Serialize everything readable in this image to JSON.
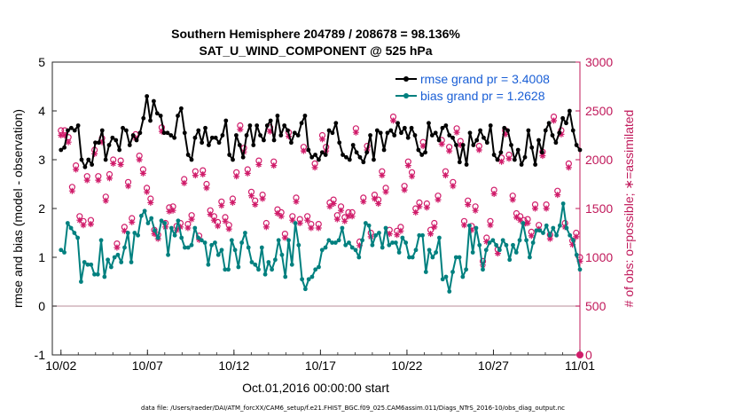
{
  "chart_data": {
    "type": "line",
    "title_line1": "Southern Hemisphere 204789 / 208678 = 98.136%",
    "title_line2": "SAT_U_WIND_COMPONENT @ 525 hPa",
    "ylabel_left": "rmse and bias (model - observation)",
    "ylabel_right": "# of obs: o=possible; ∗=assimilated",
    "xlabel": "Oct.01,2016 00:00:00 start",
    "footer": "data file: /Users/raeder/DAI/ATM_forcXX/CAM6_setup/f.e21.FHIST_BGC.f09_025.CAM6assim.011/Diags_NTrS_2016-10/obs_diag_output.nc",
    "ylim_left": [
      -1,
      5
    ],
    "ylim_right": [
      0,
      3000
    ],
    "xlim": [
      0.5,
      31.0
    ],
    "left_ticks": [
      "-1",
      "0",
      "1",
      "2",
      "3",
      "4",
      "5"
    ],
    "right_ticks": [
      "0",
      "500",
      "1000",
      "1500",
      "2000",
      "2500",
      "3000"
    ],
    "x_tick_labels": [
      "10/02",
      "10/07",
      "10/12",
      "10/17",
      "10/22",
      "10/27",
      "11/01"
    ],
    "x_tick_days": [
      1,
      6,
      11,
      16,
      21,
      26,
      31
    ],
    "zero_line": 0,
    "series": [
      {
        "name": "rmse",
        "legend": "rmse grand pr = 3.4008",
        "color": "#000000",
        "values": [
          3.2,
          3.25,
          3.6,
          3.65,
          3.6,
          3.7,
          3.0,
          2.85,
          3.0,
          2.9,
          3.35,
          3.35,
          3.6,
          3.0,
          3.3,
          3.45,
          3.4,
          3.2,
          3.65,
          3.6,
          3.3,
          3.5,
          3.4,
          3.55,
          3.85,
          4.3,
          3.8,
          4.2,
          3.95,
          3.9,
          3.55,
          3.55,
          3.5,
          3.45,
          3.9,
          4.05,
          3.55,
          3.1,
          3.0,
          3.45,
          3.6,
          3.35,
          3.65,
          3.3,
          3.45,
          3.45,
          3.35,
          3.5,
          3.8,
          3.1,
          3.0,
          3.5,
          3.3,
          3.05,
          3.5,
          3.7,
          3.3,
          3.7,
          3.5,
          3.4,
          3.7,
          3.8,
          3.4,
          3.9,
          3.5,
          3.7,
          3.6,
          3.35,
          3.55,
          3.5,
          3.75,
          3.9,
          3.2,
          3.05,
          3.1,
          3.0,
          3.15,
          3.1,
          3.6,
          3.55,
          3.75,
          3.35,
          3.1,
          3.05,
          3.0,
          3.3,
          3.15,
          3.05,
          2.95,
          3.15,
          3.5,
          3.0,
          3.6,
          3.55,
          3.2,
          3.55,
          3.6,
          3.5,
          3.75,
          3.55,
          3.65,
          3.45,
          3.65,
          3.5,
          3.2,
          3.1,
          3.15,
          3.75,
          3.5,
          3.55,
          3.4,
          3.65,
          3.7,
          3.5,
          3.45,
          3.3,
          2.95,
          3.3,
          2.9,
          3.55,
          3.3,
          3.4,
          3.6,
          3.45,
          3.35,
          3.7,
          3.1,
          3.0,
          3.15,
          3.65,
          3.6,
          3.3,
          3.0,
          3.2,
          2.9,
          3.05,
          3.6,
          3.25,
          2.9,
          3.4,
          3.15,
          3.6,
          3.75,
          3.5,
          3.35,
          3.55,
          3.85,
          3.75,
          4.0,
          3.6,
          3.3,
          3.2
        ]
      },
      {
        "name": "bias",
        "legend": "bias grand pr = 1.2628",
        "color": "#00807f",
        "values": [
          1.15,
          1.1,
          1.7,
          1.6,
          1.5,
          1.4,
          0.5,
          0.9,
          0.85,
          0.85,
          0.65,
          0.65,
          1.35,
          0.6,
          0.95,
          0.8,
          1.0,
          1.05,
          0.9,
          1.2,
          1.5,
          0.9,
          1.5,
          1.45,
          1.85,
          1.95,
          1.7,
          1.8,
          1.55,
          1.4,
          1.75,
          1.7,
          1.05,
          1.6,
          1.45,
          1.75,
          1.4,
          1.2,
          1.2,
          1.25,
          1.6,
          1.4,
          1.35,
          1.3,
          0.85,
          1.25,
          1.3,
          1.05,
          1.15,
          0.75,
          0.75,
          1.35,
          1.15,
          0.8,
          1.3,
          1.5,
          1.2,
          0.9,
          0.85,
          0.75,
          1.2,
          0.65,
          0.9,
          0.75,
          0.95,
          1.35,
          1.05,
          0.6,
          1.35,
          0.85,
          1.7,
          1.25,
          0.55,
          0.35,
          0.55,
          0.6,
          0.75,
          0.8,
          1.15,
          1.2,
          1.35,
          1.3,
          1.3,
          1.35,
          1.6,
          1.25,
          1.3,
          1.2,
          1.15,
          1.0,
          1.35,
          1.7,
          1.65,
          1.25,
          1.45,
          1.5,
          1.2,
          1.6,
          1.25,
          1.3,
          1.3,
          1.1,
          1.4,
          1.3,
          1.0,
          1.0,
          1.15,
          1.45,
          1.45,
          0.7,
          1.15,
          1.0,
          1.1,
          1.4,
          0.55,
          0.6,
          0.3,
          0.7,
          1.0,
          1.0,
          0.6,
          0.75,
          1.65,
          1.1,
          1.6,
          1.25,
          0.75,
          1.15,
          1.3,
          1.35,
          1.25,
          1.15,
          1.35,
          1.25,
          0.95,
          1.25,
          1.1,
          1.35,
          1.7,
          1.35,
          1.0,
          1.3,
          1.55,
          1.55,
          1.5,
          1.65,
          1.45,
          1.6,
          1.45,
          1.65,
          2.1,
          1.6,
          1.45,
          1.35,
          1.05,
          0.75
        ]
      }
    ],
    "obs_possible": [
      2300,
      2300,
      2230,
      1720,
      1940,
      1420,
      1370,
      1830,
      1380,
      2100,
      1830,
      2220,
      1620,
      1850,
      2000,
      1140,
      1990,
      1310,
      1770,
      1400,
      2260,
      2040,
      1900,
      1710,
      1600,
      1280,
      1230,
      2330,
      1350,
      1510,
      1520,
      1320,
      1350,
      1800,
      1340,
      1430,
      1880,
      1220,
      1890,
      1750,
      1480,
      1420,
      1360,
      1570,
      1410,
      1330,
      1600,
      1870,
      2350,
      2120,
      1900,
      1670,
      1580,
      1990,
      1640,
      1350,
      2330,
      1980,
      1490,
      1460,
      1240,
      2280,
      1420,
      1610,
      1390,
      2130,
      1420,
      1340,
      1960,
      1340,
      2250,
      2130,
      1560,
      1590,
      1430,
      1520,
      1410,
      1460,
      1460,
      2320,
      1160,
      1610,
      2140,
      1250,
      1640,
      1590,
      1880,
      1710,
      1280,
      2440,
      1270,
      1310,
      1730,
      1980,
      1870,
      1500,
      1560,
      2180,
      1550,
      1280,
      1350,
      1630,
      2200,
      1880,
      2130,
      1770,
      2320,
      2190,
      1370,
      1580,
      1320,
      1520,
      2140,
      960,
      1200,
      1370,
      1690,
      1080,
      2020,
      2300,
      2050,
      1630,
      1450,
      1420,
      1380,
      1390,
      1260,
      1540,
      1330,
      2080,
      1540,
      1230,
      2440,
      1680,
      2300,
      1350,
      1960,
      1170,
      1250,
      1000
    ],
    "obs_assimilated": [
      2250,
      2250,
      2180,
      1680,
      1900,
      1380,
      1330,
      1790,
      1340,
      2060,
      1790,
      2180,
      1580,
      1810,
      1960,
      1100,
      1950,
      1270,
      1730,
      1360,
      2220,
      2000,
      1860,
      1670,
      1560,
      1240,
      1190,
      2290,
      1310,
      1470,
      1480,
      1280,
      1310,
      1760,
      1300,
      1390,
      1840,
      1180,
      1850,
      1710,
      1440,
      1380,
      1320,
      1530,
      1370,
      1290,
      1560,
      1830,
      2310,
      2080,
      1860,
      1630,
      1540,
      1950,
      1600,
      1310,
      2290,
      1940,
      1450,
      1420,
      1200,
      2240,
      1380,
      1570,
      1350,
      2090,
      1380,
      1300,
      1920,
      1300,
      2210,
      2090,
      1520,
      1550,
      1390,
      1480,
      1370,
      1420,
      1420,
      2280,
      1120,
      1570,
      2100,
      1210,
      1600,
      1550,
      1840,
      1670,
      1240,
      2400,
      1230,
      1270,
      1690,
      1940,
      1830,
      1460,
      1520,
      2140,
      1510,
      1240,
      1310,
      1590,
      2160,
      1840,
      2090,
      1730,
      2280,
      2150,
      1330,
      1540,
      1280,
      1480,
      2100,
      920,
      1160,
      1330,
      1650,
      1040,
      1980,
      2260,
      2010,
      1590,
      1410,
      1380,
      1340,
      1350,
      1220,
      1500,
      1290,
      2040,
      1500,
      1190,
      2400,
      1640,
      2260,
      1310,
      1920,
      1130,
      1210,
      960
    ]
  }
}
